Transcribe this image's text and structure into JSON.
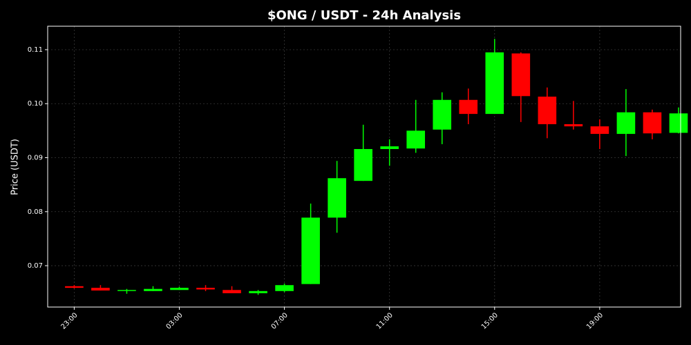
{
  "chart_data": {
    "type": "candlestick",
    "title": "$ONG / USDT - 24h Analysis",
    "y_label": "Price (USDT)",
    "x": [
      0,
      1,
      2,
      3,
      4,
      5,
      6,
      7,
      8,
      9,
      10,
      11,
      12,
      13,
      14,
      15,
      16,
      17,
      18,
      19,
      20,
      21,
      22,
      23
    ],
    "open": [
      0.0662,
      0.0659,
      0.0654,
      0.0653,
      0.0655,
      0.0659,
      0.0655,
      0.0649,
      0.0653,
      0.0666,
      0.0789,
      0.0857,
      0.0916,
      0.0917,
      0.0952,
      0.1007,
      0.0981,
      0.1093,
      0.1013,
      0.0962,
      0.0958,
      0.0944,
      0.0984,
      0.0946
    ],
    "high": [
      0.0664,
      0.0664,
      0.0657,
      0.0662,
      0.0661,
      0.0664,
      0.0662,
      0.0655,
      0.0667,
      0.0815,
      0.0894,
      0.0961,
      0.0934,
      0.1007,
      0.1021,
      0.1028,
      0.112,
      0.1095,
      0.103,
      0.1005,
      0.0971,
      0.1027,
      0.0989,
      0.0993
    ],
    "low": [
      0.0658,
      0.0654,
      0.0648,
      0.0653,
      0.0655,
      0.0653,
      0.0649,
      0.0646,
      0.0651,
      0.0666,
      0.0761,
      0.0857,
      0.0885,
      0.0909,
      0.0925,
      0.0962,
      0.0981,
      0.0966,
      0.0936,
      0.0952,
      0.0916,
      0.0903,
      0.0934,
      0.0945
    ],
    "close": [
      0.0659,
      0.0654,
      0.0655,
      0.0657,
      0.0659,
      0.0656,
      0.0649,
      0.0653,
      0.0664,
      0.0789,
      0.0862,
      0.0916,
      0.0921,
      0.095,
      0.1007,
      0.0981,
      0.1095,
      0.1014,
      0.0962,
      0.0958,
      0.0944,
      0.0984,
      0.0945,
      0.0982
    ],
    "up_color": "#00ff00",
    "down_color": "#ff0000",
    "xlim": [
      -1.01,
      23.08
    ],
    "xticks": [
      {
        "value": 0,
        "label": "23:00"
      },
      {
        "value": 4,
        "label": "03:00"
      },
      {
        "value": 8,
        "label": "07:00"
      },
      {
        "value": 12,
        "label": "11:00"
      },
      {
        "value": 16,
        "label": "15:00"
      },
      {
        "value": 20,
        "label": "19:00"
      }
    ],
    "ylim": [
      0.06234,
      0.11434
    ],
    "yticks": [
      0.07,
      0.08,
      0.09,
      {
        "value": 0.1,
        "label": "0.10"
      },
      0.11
    ],
    "grid": true
  }
}
